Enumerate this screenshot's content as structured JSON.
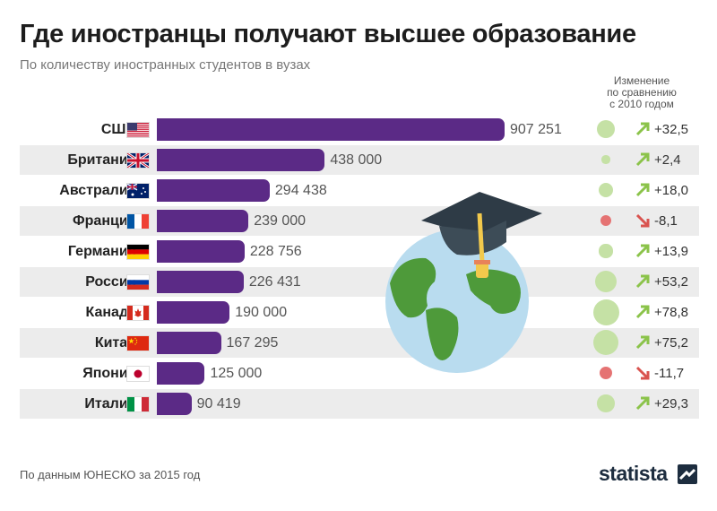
{
  "title": "Где иностранцы получают высшее образование",
  "subtitle": "По количеству иностранных студентов в вузах",
  "change_header": [
    "Изменение",
    "по сравнению",
    "с 2010 годом"
  ],
  "source": "По данным ЮНЕСКО за 2015 год",
  "logo": "statista",
  "colors": {
    "bar": "#5b2a86",
    "growth": "#8bc34a",
    "growth_bubble": "#c5e1a5",
    "decline": "#e57373",
    "decline_arrow": "#d9534f"
  },
  "chart_data": {
    "type": "bar",
    "orientation": "horizontal",
    "title": "Где иностранцы получают высшее образование",
    "subtitle": "По количеству иностранных студентов в вузах",
    "categories": [
      "США",
      "Британия",
      "Австралия",
      "Франция",
      "Германия",
      "Россия",
      "Канада",
      "Китай",
      "Япония",
      "Италия"
    ],
    "flags": [
      "us-flag",
      "uk-flag",
      "australia-flag",
      "france-flag",
      "germany-flag",
      "russia-flag",
      "canada-flag",
      "china-flag",
      "japan-flag",
      "italy-flag"
    ],
    "values": [
      907251,
      438000,
      294438,
      239000,
      228756,
      226431,
      190000,
      167295,
      125000,
      90419
    ],
    "value_labels": [
      "907 251",
      "438 000",
      "294 438",
      "239 000",
      "228 756",
      "226 431",
      "190 000",
      "167 295",
      "125 000",
      "90 419"
    ],
    "change_pct": [
      32.5,
      2.4,
      18.0,
      -8.1,
      13.9,
      53.2,
      78.8,
      75.2,
      -11.7,
      29.3
    ],
    "change_labels": [
      "+32,5",
      "+2,4",
      "+18,0",
      "-8,1",
      "+13,9",
      "+53,2",
      "+78,8",
      "+75,2",
      "-11,7",
      "+29,3"
    ],
    "change_header": "Изменение по сравнению с 2010 годом",
    "grid": false
  }
}
